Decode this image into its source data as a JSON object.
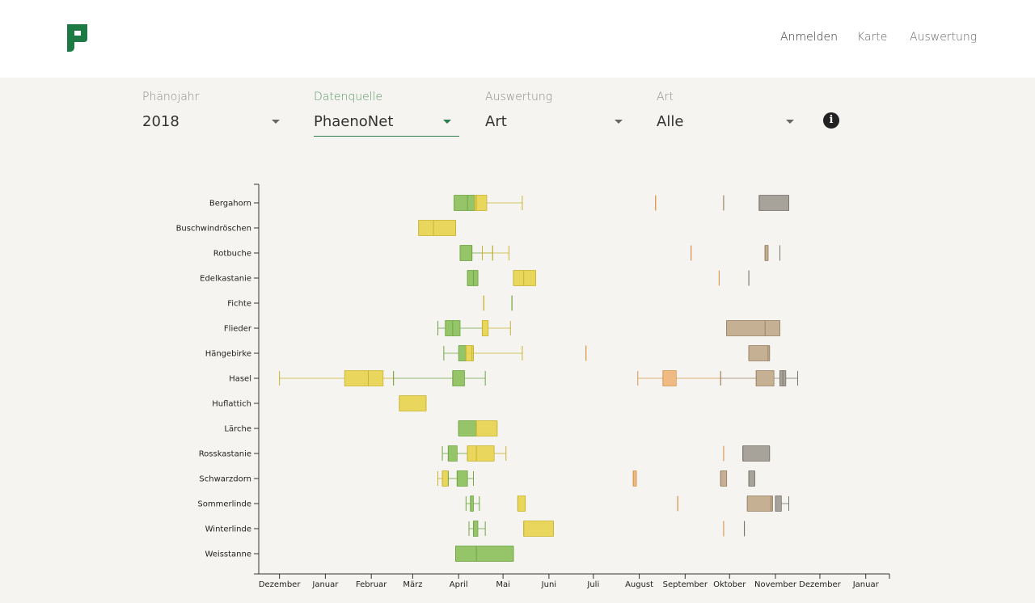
{
  "nav": {
    "items": [
      {
        "label": "Anmelden",
        "active": true
      },
      {
        "label": "Karte",
        "active": false
      },
      {
        "label": "Auswertung",
        "active": false
      }
    ]
  },
  "filters": [
    {
      "label": "Phänojahr",
      "value": "2018",
      "active": false
    },
    {
      "label": "Datenquelle",
      "value": "PhaenoNet",
      "active": true
    },
    {
      "label": "Auswertung",
      "value": "Art",
      "active": false
    },
    {
      "label": "Art",
      "value": "Alle",
      "active": false
    }
  ],
  "info_icon": "info-icon",
  "colors": {
    "green": "#8cc05a",
    "yellow": "#e8d44d",
    "orange": "#f0b478",
    "tan": "#c0a88a",
    "gray": "#a09a90",
    "accent": "#2e7d4f"
  },
  "chart_data": {
    "type": "boxplot",
    "categories": [
      "Bergahorn",
      "Buschwindröschen",
      "Rotbuche",
      "Edelkastanie",
      "Fichte",
      "Flieder",
      "Hängebirke",
      "Hasel",
      "Huflattich",
      "Lärche",
      "Rosskastanie",
      "Schwarzdorn",
      "Sommerlinde",
      "Winterlinde",
      "Weisstanne"
    ],
    "x_ticks": [
      "Dezember",
      "Januar",
      "Februar",
      "März",
      "April",
      "Mai",
      "Juni",
      "Juli",
      "August",
      "September",
      "Oktober",
      "November",
      "Dezember",
      "Januar"
    ],
    "x_range": [
      "2017-12-01",
      "2019-01-31"
    ],
    "series": [
      {
        "category": "Bergahorn",
        "color": "green",
        "min": "2018-04-12",
        "q1": "2018-04-12",
        "median": "2018-04-21",
        "q3": "2018-04-26",
        "max": "2018-04-26"
      },
      {
        "category": "Bergahorn",
        "color": "yellow",
        "min": "2018-04-26",
        "q1": "2018-04-26",
        "median": "2018-04-27",
        "q3": "2018-05-04",
        "max": "2018-05-28"
      },
      {
        "category": "Bergahorn",
        "color": "orange",
        "min": "2018-08-26",
        "q1": "2018-08-26",
        "median": "2018-08-26",
        "q3": "2018-08-26",
        "max": "2018-08-26"
      },
      {
        "category": "Bergahorn",
        "color": "tan",
        "min": "2018-10-11",
        "q1": "2018-10-11",
        "median": "2018-10-11",
        "q3": "2018-10-11",
        "max": "2018-10-11"
      },
      {
        "category": "Bergahorn",
        "color": "gray",
        "min": "2018-11-04",
        "q1": "2018-11-04",
        "median": "2018-11-04",
        "q3": "2018-11-24",
        "max": "2018-11-24"
      },
      {
        "category": "Buschwindröschen",
        "color": "yellow",
        "min": "2018-03-19",
        "q1": "2018-03-19",
        "median": "2018-03-29",
        "q3": "2018-04-13",
        "max": "2018-04-13"
      },
      {
        "category": "Rotbuche",
        "color": "green",
        "min": "2018-04-16",
        "q1": "2018-04-16",
        "median": "2018-04-24",
        "q3": "2018-04-24",
        "max": "2018-05-08"
      },
      {
        "category": "Rotbuche",
        "color": "yellow",
        "min": "2018-05-01",
        "q1": "2018-05-08",
        "median": "2018-05-08",
        "q3": "2018-05-08",
        "max": "2018-05-19"
      },
      {
        "category": "Rotbuche",
        "color": "orange",
        "min": "2018-09-19",
        "q1": "2018-09-19",
        "median": "2018-09-19",
        "q3": "2018-09-19",
        "max": "2018-09-19"
      },
      {
        "category": "Rotbuche",
        "color": "tan",
        "min": "2018-11-08",
        "q1": "2018-11-08",
        "median": "2018-11-08",
        "q3": "2018-11-10",
        "max": "2018-11-10"
      },
      {
        "category": "Rotbuche",
        "color": "gray",
        "min": "2018-11-18",
        "q1": "2018-11-18",
        "median": "2018-11-18",
        "q3": "2018-11-18",
        "max": "2018-11-18"
      },
      {
        "category": "Edelkastanie",
        "color": "green",
        "min": "2018-04-21",
        "q1": "2018-04-21",
        "median": "2018-04-25",
        "q3": "2018-04-28",
        "max": "2018-04-28"
      },
      {
        "category": "Edelkastanie",
        "color": "yellow",
        "min": "2018-05-22",
        "q1": "2018-05-22",
        "median": "2018-05-29",
        "q3": "2018-06-06",
        "max": "2018-06-06"
      },
      {
        "category": "Edelkastanie",
        "color": "orange",
        "min": "2018-10-08",
        "q1": "2018-10-08",
        "median": "2018-10-08",
        "q3": "2018-10-08",
        "max": "2018-10-08"
      },
      {
        "category": "Edelkastanie",
        "color": "gray",
        "min": "2018-10-28",
        "q1": "2018-10-28",
        "median": "2018-10-28",
        "q3": "2018-10-28",
        "max": "2018-10-28"
      },
      {
        "category": "Fichte",
        "color": "yellow",
        "min": "2018-05-02",
        "q1": "2018-05-02",
        "median": "2018-05-02",
        "q3": "2018-05-02",
        "max": "2018-05-02"
      },
      {
        "category": "Fichte",
        "color": "green",
        "min": "2018-05-21",
        "q1": "2018-05-21",
        "median": "2018-05-21",
        "q3": "2018-05-21",
        "max": "2018-05-21"
      },
      {
        "category": "Flieder",
        "color": "green",
        "min": "2018-04-01",
        "q1": "2018-04-06",
        "median": "2018-04-11",
        "q3": "2018-04-16",
        "max": "2018-05-01"
      },
      {
        "category": "Flieder",
        "color": "yellow",
        "min": "2018-05-01",
        "q1": "2018-05-01",
        "median": "2018-05-01",
        "q3": "2018-05-05",
        "max": "2018-05-20"
      },
      {
        "category": "Flieder",
        "color": "tan",
        "min": "2018-10-13",
        "q1": "2018-10-13",
        "median": "2018-11-08",
        "q3": "2018-11-18",
        "max": "2018-11-18"
      },
      {
        "category": "Hängebirke",
        "color": "green",
        "min": "2018-04-05",
        "q1": "2018-04-15",
        "median": "2018-04-20",
        "q3": "2018-04-20",
        "max": "2018-04-25"
      },
      {
        "category": "Hängebirke",
        "color": "yellow",
        "min": "2018-04-20",
        "q1": "2018-04-20",
        "median": "2018-04-24",
        "q3": "2018-04-25",
        "max": "2018-05-28"
      },
      {
        "category": "Hängebirke",
        "color": "orange",
        "min": "2018-07-10",
        "q1": "2018-07-10",
        "median": "2018-07-10",
        "q3": "2018-07-10",
        "max": "2018-07-10"
      },
      {
        "category": "Hängebirke",
        "color": "tan",
        "min": "2018-10-28",
        "q1": "2018-10-28",
        "median": "2018-11-10",
        "q3": "2018-11-11",
        "max": "2018-11-11"
      },
      {
        "category": "Hasel",
        "color": "yellow",
        "min": "2017-12-15",
        "q1": "2018-01-28",
        "median": "2018-02-13",
        "q3": "2018-02-23",
        "max": "2018-03-02"
      },
      {
        "category": "Hasel",
        "color": "green",
        "min": "2018-03-02",
        "q1": "2018-04-11",
        "median": "2018-04-11",
        "q3": "2018-04-19",
        "max": "2018-05-03"
      },
      {
        "category": "Hasel",
        "color": "orange",
        "min": "2018-08-14",
        "q1": "2018-08-31",
        "median": "2018-08-31",
        "q3": "2018-09-09",
        "max": "2018-10-09"
      },
      {
        "category": "Hasel",
        "color": "tan",
        "min": "2018-10-09",
        "q1": "2018-11-02",
        "median": "2018-11-02",
        "q3": "2018-11-14",
        "max": "2018-11-18"
      },
      {
        "category": "Hasel",
        "color": "gray",
        "min": "2018-11-18",
        "q1": "2018-11-18",
        "median": "2018-11-20",
        "q3": "2018-11-22",
        "max": "2018-11-30"
      },
      {
        "category": "Huflattich",
        "color": "yellow",
        "min": "2018-03-06",
        "q1": "2018-03-06",
        "median": "2018-03-06",
        "q3": "2018-03-24",
        "max": "2018-03-24"
      },
      {
        "category": "Lärche",
        "color": "green",
        "min": "2018-04-15",
        "q1": "2018-04-15",
        "median": "2018-04-27",
        "q3": "2018-04-27",
        "max": "2018-04-27"
      },
      {
        "category": "Lärche",
        "color": "yellow",
        "min": "2018-04-27",
        "q1": "2018-04-27",
        "median": "2018-04-27",
        "q3": "2018-05-11",
        "max": "2018-05-11"
      },
      {
        "category": "Rosskastanie",
        "color": "green",
        "min": "2018-04-04",
        "q1": "2018-04-08",
        "median": "2018-04-08",
        "q3": "2018-04-14",
        "max": "2018-04-21"
      },
      {
        "category": "Rosskastanie",
        "color": "yellow",
        "min": "2018-04-21",
        "q1": "2018-04-21",
        "median": "2018-04-27",
        "q3": "2018-05-09",
        "max": "2018-05-17"
      },
      {
        "category": "Rosskastanie",
        "color": "orange",
        "min": "2018-10-11",
        "q1": "2018-10-11",
        "median": "2018-10-11",
        "q3": "2018-10-11",
        "max": "2018-10-11"
      },
      {
        "category": "Rosskastanie",
        "color": "gray",
        "min": "2018-10-24",
        "q1": "2018-10-24",
        "median": "2018-10-24",
        "q3": "2018-11-11",
        "max": "2018-11-11"
      },
      {
        "category": "Schwarzdorn",
        "color": "yellow",
        "min": "2018-04-01",
        "q1": "2018-04-04",
        "median": "2018-04-04",
        "q3": "2018-04-08",
        "max": "2018-04-08"
      },
      {
        "category": "Schwarzdorn",
        "color": "green",
        "min": "2018-04-08",
        "q1": "2018-04-14",
        "median": "2018-04-14",
        "q3": "2018-04-21",
        "max": "2018-04-25"
      },
      {
        "category": "Schwarzdorn",
        "color": "orange",
        "min": "2018-08-11",
        "q1": "2018-08-11",
        "median": "2018-08-11",
        "q3": "2018-08-13",
        "max": "2018-08-13"
      },
      {
        "category": "Schwarzdorn",
        "color": "tan",
        "min": "2018-10-09",
        "q1": "2018-10-09",
        "median": "2018-10-09",
        "q3": "2018-10-13",
        "max": "2018-10-13"
      },
      {
        "category": "Schwarzdorn",
        "color": "gray",
        "min": "2018-10-28",
        "q1": "2018-10-28",
        "median": "2018-10-28",
        "q3": "2018-11-01",
        "max": "2018-11-01"
      },
      {
        "category": "Sommerlinde",
        "color": "green",
        "min": "2018-04-20",
        "q1": "2018-04-23",
        "median": "2018-04-23",
        "q3": "2018-04-25",
        "max": "2018-04-29"
      },
      {
        "category": "Sommerlinde",
        "color": "yellow",
        "min": "2018-05-25",
        "q1": "2018-05-25",
        "median": "2018-05-25",
        "q3": "2018-05-30",
        "max": "2018-05-30"
      },
      {
        "category": "Sommerlinde",
        "color": "orange",
        "min": "2018-09-10",
        "q1": "2018-09-10",
        "median": "2018-09-10",
        "q3": "2018-09-10",
        "max": "2018-09-10"
      },
      {
        "category": "Sommerlinde",
        "color": "tan",
        "min": "2018-10-27",
        "q1": "2018-10-27",
        "median": "2018-11-12",
        "q3": "2018-11-13",
        "max": "2018-11-13"
      },
      {
        "category": "Sommerlinde",
        "color": "gray",
        "min": "2018-11-15",
        "q1": "2018-11-15",
        "median": "2018-11-15",
        "q3": "2018-11-19",
        "max": "2018-11-24"
      },
      {
        "category": "Winterlinde",
        "color": "green",
        "min": "2018-04-22",
        "q1": "2018-04-25",
        "median": "2018-04-25",
        "q3": "2018-04-28",
        "max": "2018-05-03"
      },
      {
        "category": "Winterlinde",
        "color": "yellow",
        "min": "2018-05-29",
        "q1": "2018-05-29",
        "median": "2018-05-29",
        "q3": "2018-06-18",
        "max": "2018-06-18"
      },
      {
        "category": "Winterlinde",
        "color": "orange",
        "min": "2018-10-11",
        "q1": "2018-10-11",
        "median": "2018-10-11",
        "q3": "2018-10-11",
        "max": "2018-10-11"
      },
      {
        "category": "Winterlinde",
        "color": "gray",
        "min": "2018-10-25",
        "q1": "2018-10-25",
        "median": "2018-10-25",
        "q3": "2018-10-25",
        "max": "2018-10-25"
      },
      {
        "category": "Weisstanne",
        "color": "green",
        "min": "2018-04-13",
        "q1": "2018-04-13",
        "median": "2018-04-27",
        "q3": "2018-05-22",
        "max": "2018-05-22"
      }
    ],
    "title": "",
    "xlabel": "",
    "ylabel": "",
    "grid": false,
    "legend": "none"
  }
}
